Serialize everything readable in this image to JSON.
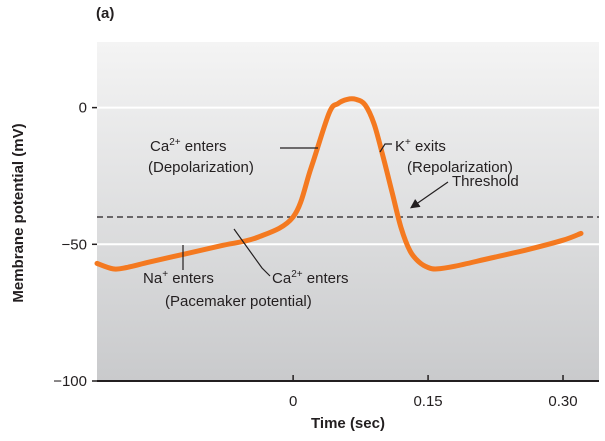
{
  "chart_data": {
    "type": "line",
    "panel_label": "(a)",
    "xlabel": "Time (sec)",
    "ylabel": "Membrane potential (mV)",
    "x_ticks": [
      {
        "value": 0,
        "label": "0"
      },
      {
        "value": 0.15,
        "label": "0.15"
      },
      {
        "value": 0.3,
        "label": "0.30"
      }
    ],
    "y_ticks": [
      {
        "value": 0,
        "label": "0"
      },
      {
        "value": -50,
        "label": "−50"
      },
      {
        "value": -100,
        "label": "−100"
      }
    ],
    "xlim": [
      -0.218,
      0.34
    ],
    "ylim": [
      -100,
      24
    ],
    "gridlines_y": [
      0,
      -50
    ],
    "threshold": {
      "value": -40,
      "label": "Threshold"
    },
    "series": [
      {
        "color": "#f47920",
        "points": [
          [
            -0.218,
            -57
          ],
          [
            -0.2,
            -59
          ],
          [
            -0.185,
            -58.5
          ],
          [
            -0.16,
            -56.5
          ],
          [
            -0.12,
            -53.5
          ],
          [
            -0.08,
            -50.5
          ],
          [
            -0.04,
            -47.5
          ],
          [
            0.0,
            -40
          ],
          [
            0.02,
            -22
          ],
          [
            0.04,
            -2
          ],
          [
            0.05,
            1.5
          ],
          [
            0.06,
            3
          ],
          [
            0.07,
            3
          ],
          [
            0.08,
            1
          ],
          [
            0.09,
            -6
          ],
          [
            0.1,
            -18
          ],
          [
            0.11,
            -31
          ],
          [
            0.12,
            -44
          ],
          [
            0.13,
            -52.5
          ],
          [
            0.14,
            -56.5
          ],
          [
            0.15,
            -58.5
          ],
          [
            0.16,
            -59
          ],
          [
            0.18,
            -58
          ],
          [
            0.22,
            -55
          ],
          [
            0.26,
            -52
          ],
          [
            0.3,
            -48.5
          ],
          [
            0.32,
            -46
          ]
        ]
      }
    ],
    "annotations": [
      {
        "id": "ca-depol",
        "lines": [
          {
            "base": "Ca",
            "sup": "2+",
            "rest": " enters"
          },
          {
            "text": "(Depolarization)"
          }
        ]
      },
      {
        "id": "k-exits",
        "lines": [
          {
            "base": "K",
            "sup": "+",
            "rest": " exits"
          },
          {
            "text": "(Repolarization)"
          }
        ]
      },
      {
        "id": "na-enters",
        "lines": [
          {
            "base": "Na",
            "sup": "+",
            "rest": " enters"
          }
        ]
      },
      {
        "id": "ca-enters",
        "lines": [
          {
            "base": "Ca",
            "sup": "2+",
            "rest": " enters"
          }
        ]
      },
      {
        "id": "pacemaker",
        "lines": [
          {
            "text": "(Pacemaker potential)"
          }
        ]
      }
    ],
    "colors": {
      "curve": "#f47920",
      "plot_bg_top": "#f4f4f4",
      "plot_bg_bottom": "#c9cacc",
      "axis": "#231f20",
      "threshold_line": "#231f20"
    },
    "grid": true
  }
}
